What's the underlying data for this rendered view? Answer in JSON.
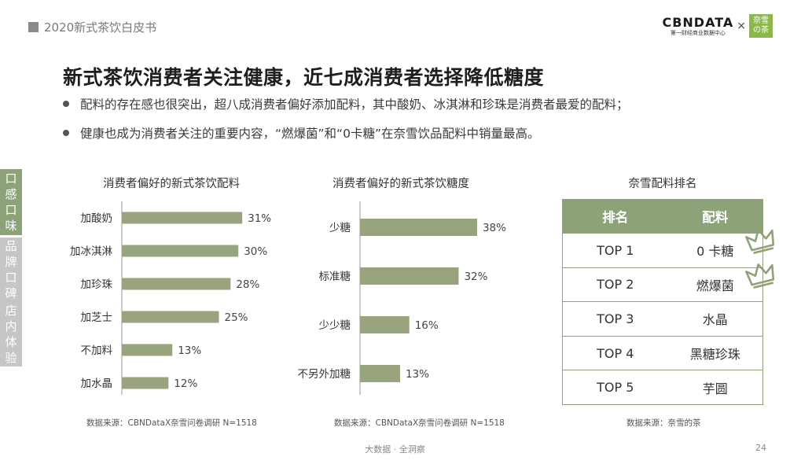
{
  "header": {
    "report_title": "2020新式茶饮白皮书",
    "brand_logo": "CBNDATA",
    "brand_sub": "第一财经商业数据中心",
    "times": "×",
    "partner_logo": "奈雪の茶"
  },
  "title": "新式茶饮消费者关注健康，近七成消费者选择降低糖度",
  "bullets": [
    "配料的存在感也很突出，超八成消费者偏好添加配料，其中酸奶、冰淇淋和珍珠是消费者最爱的配料；",
    "健康也成为消费者关注的重要内容，“燃爆菌”和“0卡糖”在奈雪饮品配料中销量最高。"
  ],
  "sidenav": [
    {
      "label": "口感口味",
      "chars": [
        "口",
        "感",
        "口",
        "味"
      ],
      "active": true
    },
    {
      "label": "品牌口碑",
      "chars": [
        "品",
        "牌",
        "口",
        "碑"
      ],
      "active": false
    },
    {
      "label": "店内体验",
      "chars": [
        "店",
        "内",
        "体",
        "验"
      ],
      "active": false
    }
  ],
  "colors": {
    "bar": "#98a47e",
    "accent": "#8ea27a",
    "crown": "#8ea27a"
  },
  "chart_data": [
    {
      "type": "bar",
      "orientation": "horizontal",
      "title": "消费者偏好的新式茶饮配料",
      "categories": [
        "加酸奶",
        "加冰淇淋",
        "加珍珠",
        "加芝士",
        "不加料",
        "加水晶"
      ],
      "values": [
        31,
        30,
        28,
        25,
        13,
        12
      ],
      "value_labels": [
        "31%",
        "30%",
        "28%",
        "25%",
        "13%",
        "12%"
      ],
      "unit": "%",
      "xlim": [
        0,
        40
      ],
      "grid": false,
      "source": "数据来源：CBNDataX奈雪问卷调研 N=1518"
    },
    {
      "type": "bar",
      "orientation": "horizontal",
      "title": "消费者偏好的新式茶饮糖度",
      "categories": [
        "少糖",
        "标准糖",
        "少少糖",
        "不另外加糖"
      ],
      "values": [
        38,
        32,
        16,
        13
      ],
      "value_labels": [
        "38%",
        "32%",
        "16%",
        "13%"
      ],
      "unit": "%",
      "xlim": [
        0,
        40
      ],
      "grid": false,
      "source": "数据来源：CBNDataX奈雪问卷调研 N=1518"
    }
  ],
  "ranking": {
    "title": "奈雪配料排名",
    "headers": [
      "排名",
      "配料"
    ],
    "rows": [
      {
        "rank": "TOP 1",
        "item": "0 卡糖",
        "crown": true
      },
      {
        "rank": "TOP 2",
        "item": "燃爆菌",
        "crown": true
      },
      {
        "rank": "TOP 3",
        "item": "水晶",
        "crown": false
      },
      {
        "rank": "TOP 4",
        "item": "黑糖珍珠",
        "crown": false
      },
      {
        "rank": "TOP 5",
        "item": "芋圆",
        "crown": false
      }
    ],
    "source": "数据来源：奈雪的茶"
  },
  "footer": {
    "text": "大数据 · 全洞察",
    "page": "24"
  }
}
